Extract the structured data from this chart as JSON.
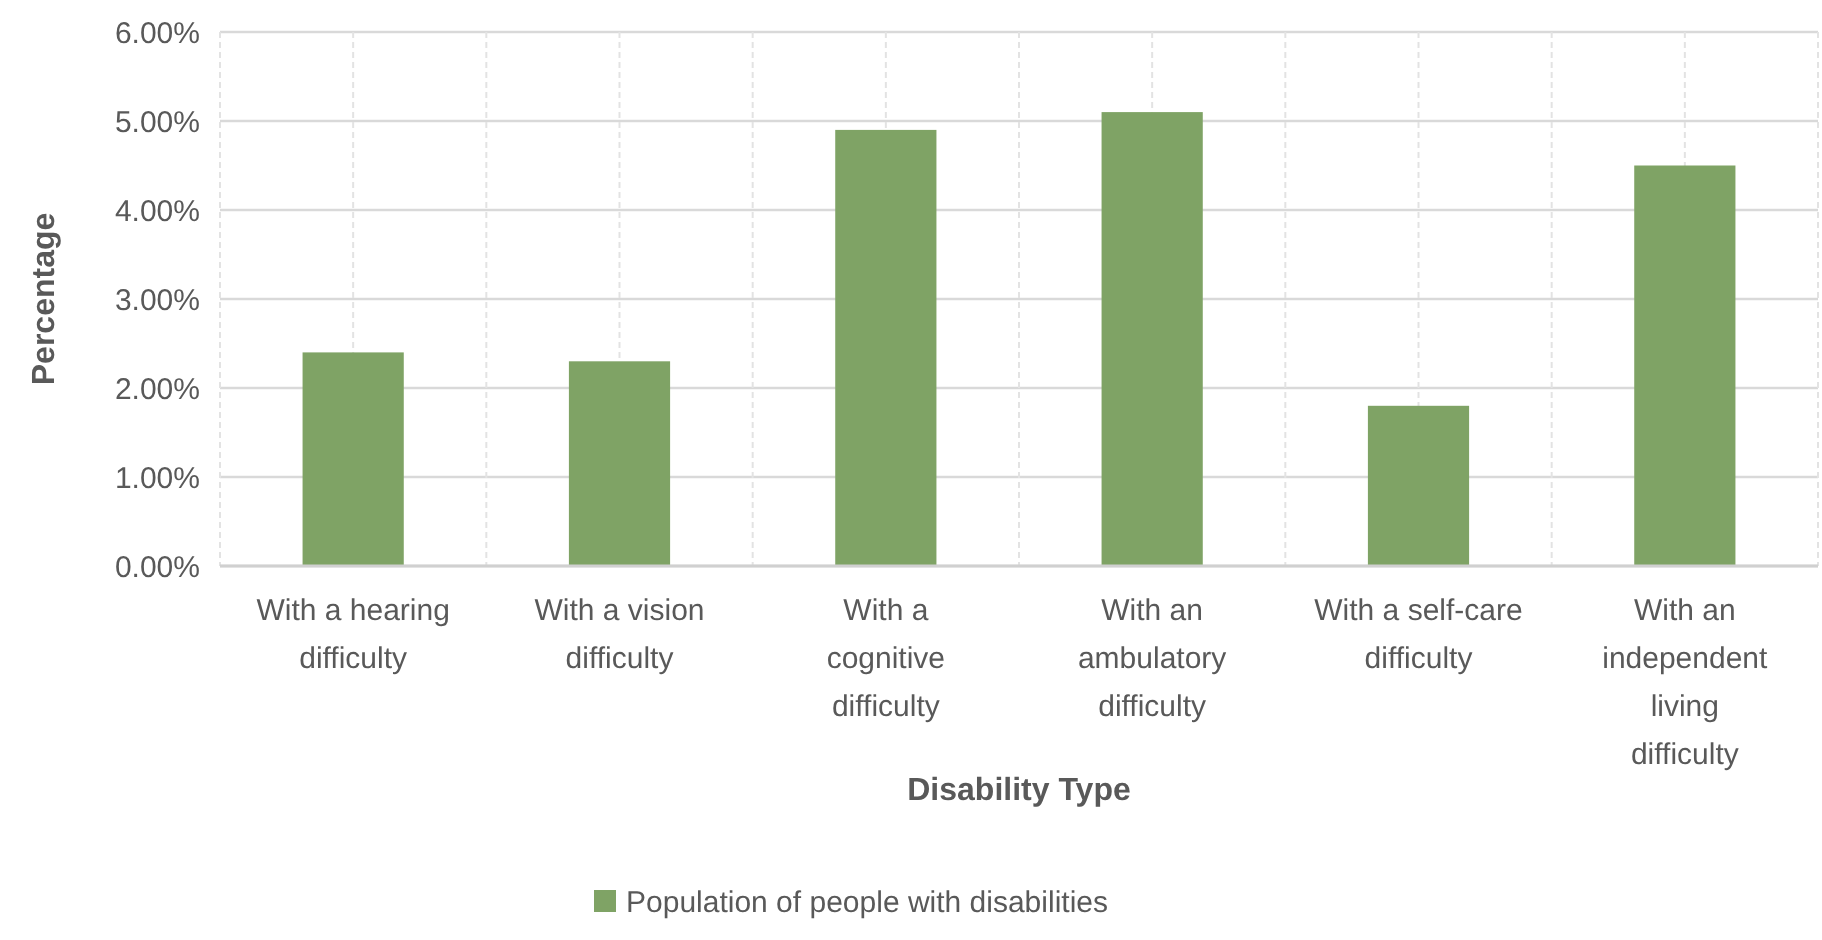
{
  "chart_data": {
    "type": "bar",
    "xlabel": "Disability Type",
    "ylabel": "Percentage",
    "categories": [
      "With a hearing difficulty",
      "With a vision difficulty",
      "With a cognitive difficulty",
      "With an ambulatory difficulty",
      "With a self-care difficulty",
      "With an independent living difficulty"
    ],
    "series": [
      {
        "name": "Population of people with disabilities",
        "color": "#7fa365",
        "values": [
          2.4,
          2.3,
          4.9,
          5.1,
          1.8,
          4.5
        ]
      }
    ],
    "ylim": [
      0,
      6
    ],
    "yticks": [
      {
        "value": 0,
        "label": "0.00%"
      },
      {
        "value": 1,
        "label": "1.00%"
      },
      {
        "value": 2,
        "label": "2.00%"
      },
      {
        "value": 3,
        "label": "3.00%"
      },
      {
        "value": 4,
        "label": "4.00%"
      },
      {
        "value": 5,
        "label": "5.00%"
      },
      {
        "value": 6,
        "label": "6.00%"
      }
    ],
    "grid": true,
    "legend": "bottom"
  }
}
